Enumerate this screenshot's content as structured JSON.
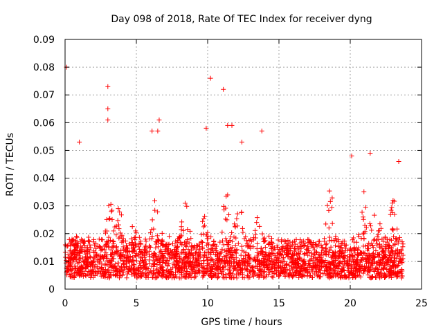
{
  "chart_data": {
    "type": "scatter",
    "title": "Day 098 of 2018, Rate Of TEC Index for receiver dyng",
    "xlabel": "GPS time / hours",
    "ylabel": "ROTI / TECUs",
    "xlim": [
      0,
      25
    ],
    "ylim": [
      0,
      0.09
    ],
    "x_ticks": [
      0,
      5,
      10,
      15,
      20,
      25
    ],
    "x_tick_labels": [
      "0",
      "5",
      "10",
      "15",
      "20",
      "25"
    ],
    "y_ticks": [
      0,
      0.01,
      0.02,
      0.03,
      0.04,
      0.05,
      0.06,
      0.07,
      0.08,
      0.09
    ],
    "y_tick_labels": [
      "0",
      "0.01",
      "0.02",
      "0.03",
      "0.04",
      "0.05",
      "0.06",
      "0.07",
      "0.08",
      "0.09"
    ],
    "grid": true,
    "marker": "+",
    "series": [
      {
        "name": "ROTI",
        "color": "#ff0000",
        "x_range": [
          0,
          23.7
        ],
        "typical_range": [
          0.004,
          0.02
        ],
        "notable_points": [
          {
            "x": 0.1,
            "y": 0.08
          },
          {
            "x": 1.0,
            "y": 0.053
          },
          {
            "x": 3.0,
            "y": 0.073
          },
          {
            "x": 3.0,
            "y": 0.065
          },
          {
            "x": 3.0,
            "y": 0.061
          },
          {
            "x": 6.1,
            "y": 0.057
          },
          {
            "x": 6.6,
            "y": 0.061
          },
          {
            "x": 6.5,
            "y": 0.057
          },
          {
            "x": 9.9,
            "y": 0.058
          },
          {
            "x": 10.2,
            "y": 0.076
          },
          {
            "x": 11.1,
            "y": 0.072
          },
          {
            "x": 11.4,
            "y": 0.059
          },
          {
            "x": 11.7,
            "y": 0.059
          },
          {
            "x": 12.4,
            "y": 0.053
          },
          {
            "x": 13.8,
            "y": 0.057
          },
          {
            "x": 20.1,
            "y": 0.048
          },
          {
            "x": 21.4,
            "y": 0.049
          },
          {
            "x": 23.4,
            "y": 0.046
          }
        ]
      }
    ]
  }
}
